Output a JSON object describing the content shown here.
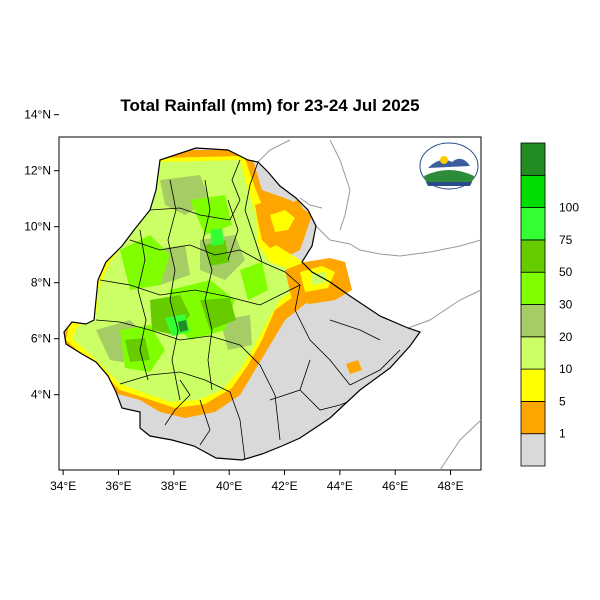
{
  "title": "Total Rainfall (mm) for 23-24 Jul 2025",
  "map": {
    "lon_range": [
      32.9,
      48.2
    ],
    "lat_range": [
      3.2,
      15.0
    ],
    "lon_ticks": [
      "34°E",
      "36°E",
      "38°E",
      "40°E",
      "42°E",
      "44°E",
      "46°E",
      "48°E"
    ],
    "lat_ticks": [
      "4°N",
      "6°N",
      "8°N",
      "10°N",
      "12°N",
      "14°N"
    ]
  },
  "legend": {
    "labels": [
      "1",
      "5",
      "10",
      "20",
      "30",
      "50",
      "75",
      "100"
    ],
    "colors": [
      "#d9d9d9",
      "#ffa500",
      "#ffff00",
      "#ccff66",
      "#a6cc66",
      "#80ff00",
      "#66cc00",
      "#33ff33",
      "#00dd00",
      "#228b22"
    ]
  },
  "colors": {
    "no_rain": "#d9d9d9",
    "orange": "#ffa500",
    "yellow": "#ffff00",
    "light_green": "#ccff66",
    "olive_green": "#a6cc66",
    "lime": "#80ff00",
    "mid_green": "#66cc00",
    "bright_green": "#33ff33",
    "dark_green": "#228b22"
  },
  "logo_icon": "ethiopian-meteorology-institute-logo"
}
